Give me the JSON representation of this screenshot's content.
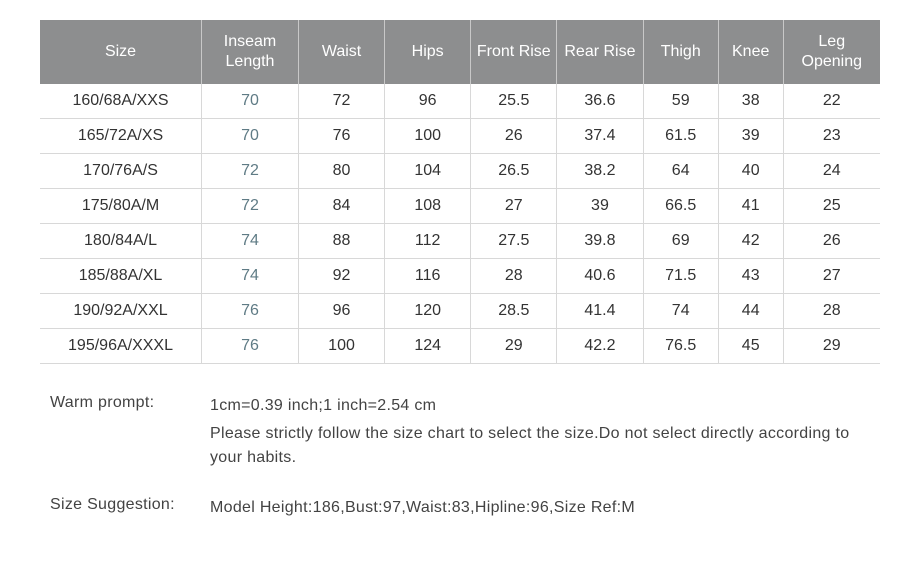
{
  "table": {
    "headers": [
      "Size",
      "Inseam Length",
      "Waist",
      "Hips",
      "Front Rise",
      "Rear Rise",
      "Thigh",
      "Knee",
      "Leg Opening"
    ],
    "rows": [
      {
        "size": "160/68A/XXS",
        "inseam": "70",
        "waist": "72",
        "hips": "96",
        "front": "25.5",
        "rear": "36.6",
        "thigh": "59",
        "knee": "38",
        "leg": "22"
      },
      {
        "size": "165/72A/XS",
        "inseam": "70",
        "waist": "76",
        "hips": "100",
        "front": "26",
        "rear": "37.4",
        "thigh": "61.5",
        "knee": "39",
        "leg": "23"
      },
      {
        "size": "170/76A/S",
        "inseam": "72",
        "waist": "80",
        "hips": "104",
        "front": "26.5",
        "rear": "38.2",
        "thigh": "64",
        "knee": "40",
        "leg": "24"
      },
      {
        "size": "175/80A/M",
        "inseam": "72",
        "waist": "84",
        "hips": "108",
        "front": "27",
        "rear": "39",
        "thigh": "66.5",
        "knee": "41",
        "leg": "25"
      },
      {
        "size": "180/84A/L",
        "inseam": "74",
        "waist": "88",
        "hips": "112",
        "front": "27.5",
        "rear": "39.8",
        "thigh": "69",
        "knee": "42",
        "leg": "26"
      },
      {
        "size": "185/88A/XL",
        "inseam": "74",
        "waist": "92",
        "hips": "116",
        "front": "28",
        "rear": "40.6",
        "thigh": "71.5",
        "knee": "43",
        "leg": "27"
      },
      {
        "size": "190/92A/XXL",
        "inseam": "76",
        "waist": "96",
        "hips": "120",
        "front": "28.5",
        "rear": "41.4",
        "thigh": "74",
        "knee": "44",
        "leg": "28"
      },
      {
        "size": "195/96A/XXXL",
        "inseam": "76",
        "waist": "100",
        "hips": "124",
        "front": "29",
        "rear": "42.2",
        "thigh": "76.5",
        "knee": "45",
        "leg": "29"
      }
    ],
    "header_bg": "#8d8e8f",
    "header_color": "#ffffff",
    "cell_border_color": "#d8d8d8",
    "cell_text_color": "#333333",
    "inseam_text_color": "#5f7b85"
  },
  "prompt": {
    "label": "Warm prompt:",
    "line1": "1cm=0.39 inch;1 inch=2.54 cm",
    "line2": "Please strictly follow the size chart  to select the size.Do not select directly according to your habits."
  },
  "suggestion": {
    "label": "Size  Suggestion:",
    "text": "Model   Height:186,Bust:97,Waist:83,Hipline:96,Size   Ref:M"
  }
}
